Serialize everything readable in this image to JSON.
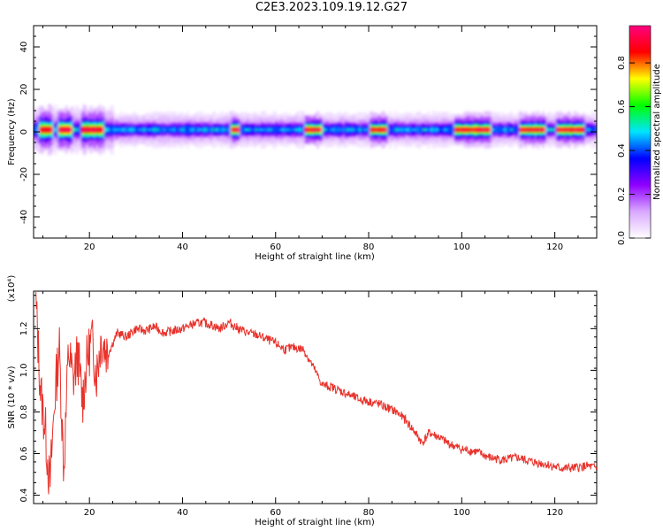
{
  "page": {
    "title": "C2E3.2023.109.19.12.G27"
  },
  "colors": {
    "snr_line": "#e8322b",
    "axis": "#000000",
    "background": "#ffffff"
  },
  "colorbar": {
    "label": "Normalized spectral amplitude",
    "ticks": [
      "0.0",
      "0.2",
      "0.4",
      "0.6",
      "0.8"
    ],
    "tick_values": [
      0.0,
      0.2,
      0.4,
      0.6,
      0.8
    ],
    "range": [
      0,
      0.97
    ],
    "colormap": [
      "#ffffff",
      "#d9a8ff",
      "#8f00ff",
      "#0000ff",
      "#00e5ff",
      "#00ff00",
      "#ffff00",
      "#ff0000",
      "#ff007f"
    ]
  },
  "chart_data": [
    {
      "type": "heatmap",
      "title": "",
      "xlabel": "Height of straight line (km)",
      "ylabel": "Frequency (Hz)",
      "xlim": [
        8,
        129
      ],
      "ylim": [
        -50,
        50
      ],
      "xticks": [
        "20",
        "40",
        "60",
        "80",
        "100",
        "120"
      ],
      "xtick_values": [
        20,
        40,
        60,
        80,
        100,
        120
      ],
      "yticks": [
        "-40",
        "-20",
        "0",
        "20",
        "40"
      ],
      "ytick_values": [
        -40,
        -20,
        0,
        20,
        40
      ],
      "grid": false,
      "band": {
        "center_frequency_hz": 1,
        "half_width_hz": 3,
        "peak_segments_km": [
          [
            9,
            12
          ],
          [
            13,
            16
          ],
          [
            18,
            23
          ],
          [
            50,
            52
          ],
          [
            66,
            70
          ],
          [
            80,
            84
          ],
          [
            98,
            106
          ],
          [
            112,
            118
          ],
          [
            120,
            126
          ]
        ],
        "peak_amplitude": 0.95,
        "base_amplitude": 0.45
      }
    },
    {
      "type": "line",
      "title": "",
      "xlabel": "Height of straight line (km)",
      "ylabel": "SNR (10 * v/v)",
      "y_multiplier": "(x10⁴)",
      "xlim": [
        8,
        129
      ],
      "ylim": [
        0.36,
        1.38
      ],
      "xticks": [
        "20",
        "40",
        "60",
        "80",
        "100",
        "120"
      ],
      "xtick_values": [
        20,
        40,
        60,
        80,
        100,
        120
      ],
      "yticks": [
        "0.4",
        "0.6",
        "0.8",
        "1.0",
        "1.2"
      ],
      "ytick_values": [
        0.4,
        0.6,
        0.8,
        1.0,
        1.2
      ],
      "grid": false,
      "series": [
        {
          "x": [
            8.5,
            9.5,
            10.5,
            11.5,
            12.5,
            13.5,
            14.5,
            15.5,
            16.5,
            17.5,
            18.5,
            19.5,
            20.5,
            21.5,
            22.5,
            24,
            26,
            28,
            30,
            32,
            34,
            36,
            38,
            40,
            42,
            44,
            46,
            48,
            50,
            52,
            54,
            56,
            58,
            60,
            62,
            64,
            66,
            68,
            70,
            72,
            74,
            76,
            78,
            80,
            82,
            84,
            86,
            88,
            90,
            91.5,
            93,
            95,
            97,
            100,
            103,
            106,
            109,
            112,
            115,
            118,
            121,
            124,
            127,
            129
          ],
          "y": [
            1.32,
            0.9,
            0.72,
            0.44,
            0.85,
            1.12,
            0.52,
            1.1,
            0.95,
            1.08,
            0.85,
            1.05,
            1.15,
            0.98,
            1.15,
            1.08,
            1.18,
            1.16,
            1.2,
            1.19,
            1.21,
            1.18,
            1.19,
            1.2,
            1.22,
            1.23,
            1.22,
            1.2,
            1.23,
            1.2,
            1.18,
            1.17,
            1.15,
            1.13,
            1.1,
            1.11,
            1.1,
            1.02,
            0.93,
            0.92,
            0.9,
            0.88,
            0.86,
            0.85,
            0.84,
            0.82,
            0.8,
            0.76,
            0.7,
            0.65,
            0.7,
            0.68,
            0.65,
            0.62,
            0.61,
            0.58,
            0.57,
            0.58,
            0.56,
            0.55,
            0.53,
            0.53,
            0.54,
            0.53
          ],
          "noise": 0.022
        }
      ]
    }
  ]
}
